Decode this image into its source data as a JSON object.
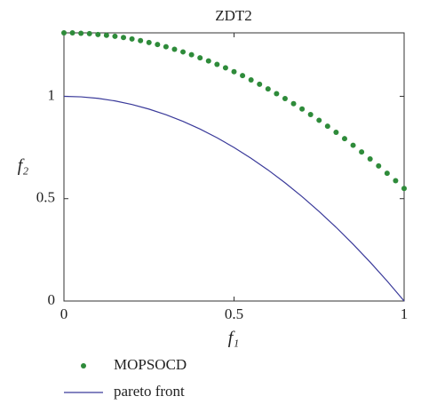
{
  "chart_data": {
    "type": "scatter-line",
    "title": "ZDT2",
    "x_label": "f₁",
    "y_label": "f₂",
    "xlim": [
      0,
      1
    ],
    "ylim": [
      0,
      1.31
    ],
    "xticks": [
      0,
      0.5,
      1
    ],
    "yticks": [
      0,
      0.5,
      1
    ],
    "legend": "bottom-left",
    "series": [
      {
        "name": "MOPSOCD",
        "color": "#2e8b3a",
        "kind": "scatter",
        "x": [
          0,
          0.025,
          0.05,
          0.075,
          0.1,
          0.125,
          0.15,
          0.175,
          0.2,
          0.225,
          0.25,
          0.275,
          0.3,
          0.325,
          0.35,
          0.375,
          0.4,
          0.425,
          0.45,
          0.475,
          0.5,
          0.525,
          0.55,
          0.575,
          0.6,
          0.625,
          0.65,
          0.675,
          0.7,
          0.725,
          0.75,
          0.775,
          0.8,
          0.825,
          0.85,
          0.875,
          0.9,
          0.925,
          0.95,
          0.975,
          1
        ],
        "values": [
          1.31,
          1.31,
          1.308,
          1.306,
          1.302,
          1.298,
          1.293,
          1.287,
          1.28,
          1.272,
          1.263,
          1.253,
          1.242,
          1.23,
          1.217,
          1.203,
          1.188,
          1.173,
          1.156,
          1.139,
          1.12,
          1.101,
          1.08,
          1.059,
          1.036,
          1.013,
          0.989,
          0.964,
          0.938,
          0.911,
          0.883,
          0.854,
          0.824,
          0.793,
          0.761,
          0.728,
          0.694,
          0.66,
          0.624,
          0.588,
          0.55
        ]
      },
      {
        "name": "pareto front",
        "color": "#3a3a9a",
        "kind": "line",
        "x": [
          0,
          0.05,
          0.1,
          0.15,
          0.2,
          0.25,
          0.3,
          0.35,
          0.4,
          0.45,
          0.5,
          0.55,
          0.6,
          0.65,
          0.7,
          0.75,
          0.8,
          0.85,
          0.9,
          0.95,
          1
        ],
        "values": [
          1,
          0.9975,
          0.99,
          0.9775,
          0.96,
          0.9375,
          0.91,
          0.8775,
          0.84,
          0.7975,
          0.75,
          0.6975,
          0.64,
          0.5775,
          0.51,
          0.4375,
          0.36,
          0.2775,
          0.19,
          0.0975,
          0
        ]
      }
    ]
  }
}
